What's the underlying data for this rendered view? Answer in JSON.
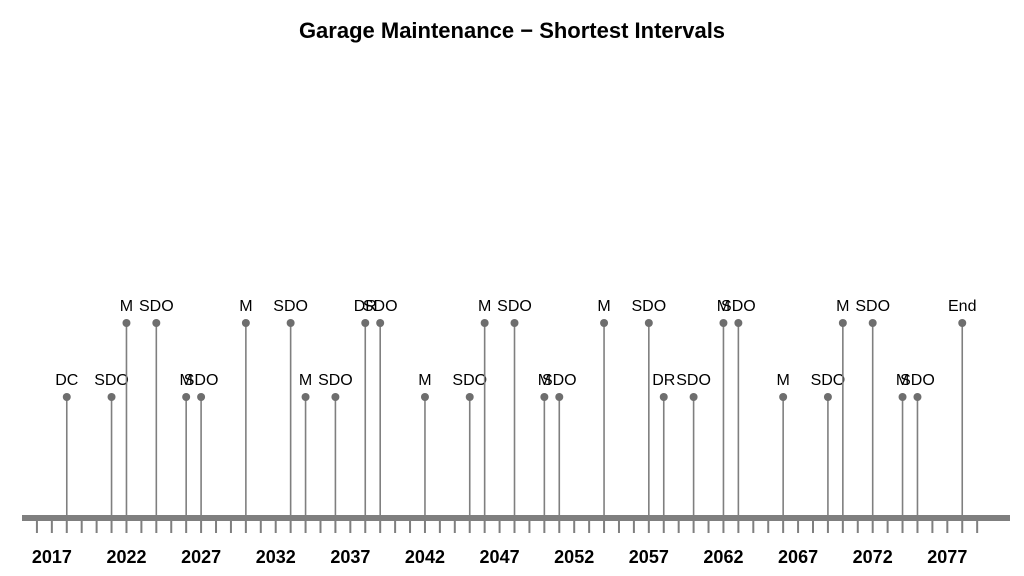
{
  "chart_data": {
    "type": "timeline",
    "title": "Garage Maintenance − Shortest Intervals",
    "xlabel": "",
    "ylabel": "",
    "xlim": [
      2015.0,
      2081.2
    ],
    "tick_labels": [
      "2017",
      "2022",
      "2027",
      "2032",
      "2037",
      "2042",
      "2047",
      "2052",
      "2057",
      "2062",
      "2067",
      "2072",
      "2077"
    ],
    "events": [
      {
        "label": "DC",
        "year": 2018.0,
        "tier": "low"
      },
      {
        "label": "SDO",
        "year": 2021.0,
        "tier": "low"
      },
      {
        "label": "M",
        "year": 2022.0,
        "tier": "high"
      },
      {
        "label": "SDO",
        "year": 2024.0,
        "tier": "high"
      },
      {
        "label": "M",
        "year": 2026.0,
        "tier": "low"
      },
      {
        "label": "SDO",
        "year": 2027.0,
        "tier": "low"
      },
      {
        "label": "M",
        "year": 2030.0,
        "tier": "high"
      },
      {
        "label": "SDO",
        "year": 2033.0,
        "tier": "high"
      },
      {
        "label": "M",
        "year": 2034.0,
        "tier": "low"
      },
      {
        "label": "SDO",
        "year": 2036.0,
        "tier": "low"
      },
      {
        "label": "DR",
        "year": 2038.0,
        "tier": "high"
      },
      {
        "label": "SDO",
        "year": 2039.0,
        "tier": "high"
      },
      {
        "label": "M",
        "year": 2042.0,
        "tier": "low"
      },
      {
        "label": "SDO",
        "year": 2045.0,
        "tier": "low"
      },
      {
        "label": "M",
        "year": 2046.0,
        "tier": "high"
      },
      {
        "label": "SDO",
        "year": 2048.0,
        "tier": "high"
      },
      {
        "label": "M",
        "year": 2050.0,
        "tier": "low"
      },
      {
        "label": "SDO",
        "year": 2051.0,
        "tier": "low"
      },
      {
        "label": "M",
        "year": 2054.0,
        "tier": "high"
      },
      {
        "label": "SDO",
        "year": 2057.0,
        "tier": "high"
      },
      {
        "label": "DR",
        "year": 2058.0,
        "tier": "low"
      },
      {
        "label": "SDO",
        "year": 2060.0,
        "tier": "low"
      },
      {
        "label": "M",
        "year": 2062.0,
        "tier": "high"
      },
      {
        "label": "SDO",
        "year": 2063.0,
        "tier": "high"
      },
      {
        "label": "M",
        "year": 2066.0,
        "tier": "low"
      },
      {
        "label": "SDO",
        "year": 2069.0,
        "tier": "low"
      },
      {
        "label": "M",
        "year": 2070.0,
        "tier": "high"
      },
      {
        "label": "SDO",
        "year": 2072.0,
        "tier": "high"
      },
      {
        "label": "M",
        "year": 2074.0,
        "tier": "low"
      },
      {
        "label": "SDO",
        "year": 2075.0,
        "tier": "low"
      },
      {
        "label": "End",
        "year": 2078.0,
        "tier": "high"
      }
    ],
    "colors": {
      "stem": "#7f7f7f",
      "marker": "#6e6e6e",
      "axis": "#7f7f7f",
      "text": "#000000"
    },
    "grid": false
  }
}
